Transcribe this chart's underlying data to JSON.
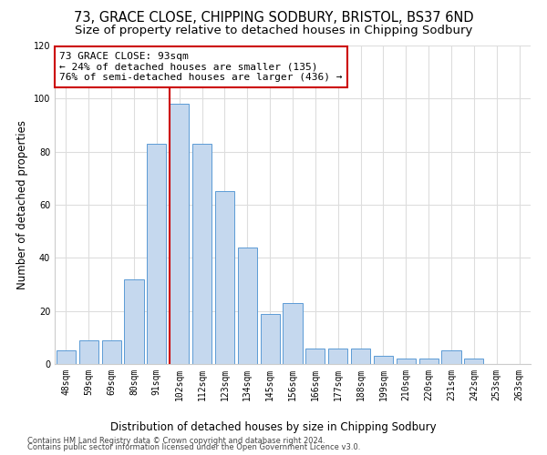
{
  "title": "73, GRACE CLOSE, CHIPPING SODBURY, BRISTOL, BS37 6ND",
  "subtitle": "Size of property relative to detached houses in Chipping Sodbury",
  "xlabel_bottom": "Distribution of detached houses by size in Chipping Sodbury",
  "ylabel": "Number of detached properties",
  "footer1": "Contains HM Land Registry data © Crown copyright and database right 2024.",
  "footer2": "Contains public sector information licensed under the Open Government Licence v3.0.",
  "bin_labels": [
    "48sqm",
    "59sqm",
    "69sqm",
    "80sqm",
    "91sqm",
    "102sqm",
    "112sqm",
    "123sqm",
    "134sqm",
    "145sqm",
    "156sqm",
    "166sqm",
    "177sqm",
    "188sqm",
    "199sqm",
    "210sqm",
    "220sqm",
    "231sqm",
    "242sqm",
    "253sqm",
    "263sqm"
  ],
  "bar_values": [
    5,
    9,
    9,
    32,
    83,
    98,
    83,
    65,
    44,
    19,
    23,
    6,
    6,
    6,
    3,
    2,
    2,
    5,
    2,
    0,
    0
  ],
  "bar_color": "#c5d8ee",
  "bar_edgecolor": "#5b9bd5",
  "vline_x_index": 4.5,
  "vline_color": "#cc0000",
  "annotation_line1": "73 GRACE CLOSE: 93sqm",
  "annotation_line2": "← 24% of detached houses are smaller (135)",
  "annotation_line3": "76% of semi-detached houses are larger (436) →",
  "annotation_box_color": "#ffffff",
  "annotation_box_edgecolor": "#cc0000",
  "ylim": [
    0,
    120
  ],
  "yticks": [
    0,
    20,
    40,
    60,
    80,
    100,
    120
  ],
  "background_color": "#ffffff",
  "plot_background": "#ffffff",
  "grid_color": "#dddddd",
  "title_fontsize": 10.5,
  "subtitle_fontsize": 9.5,
  "axis_label_fontsize": 8.5,
  "tick_fontsize": 7,
  "footer_fontsize": 6,
  "annotation_fontsize": 8
}
